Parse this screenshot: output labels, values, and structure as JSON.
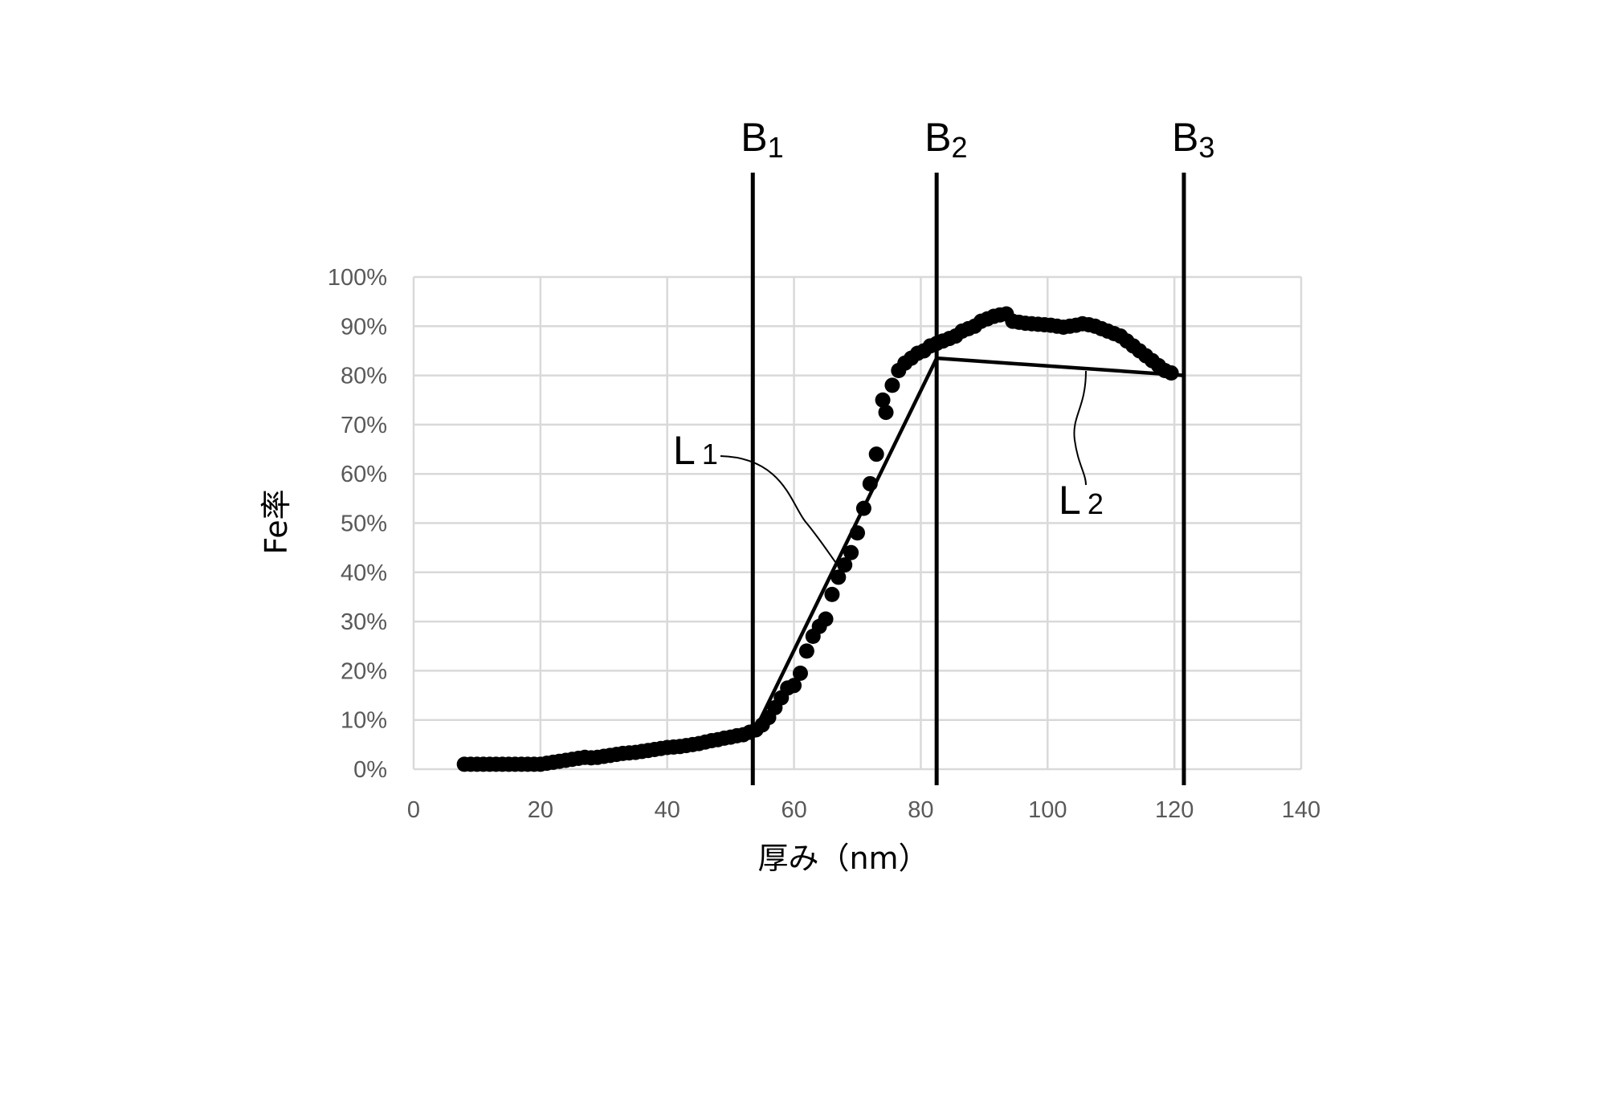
{
  "chart_data": {
    "type": "scatter",
    "title": "",
    "xlabel": "厚み（nm）",
    "ylabel": "Fe率",
    "xlim": [
      0,
      140
    ],
    "ylim": [
      0,
      100
    ],
    "x_ticks": [
      "0",
      "20",
      "40",
      "60",
      "80",
      "100",
      "120",
      "140"
    ],
    "y_ticks": [
      "0%",
      "10%",
      "20%",
      "30%",
      "40%",
      "50%",
      "60%",
      "70%",
      "80%",
      "90%",
      "100%"
    ],
    "grid": true,
    "series": [
      {
        "x": [
          8,
          9,
          10,
          11,
          12,
          13,
          14,
          15,
          16,
          17,
          18,
          19,
          20,
          21,
          22,
          23,
          24,
          25,
          26,
          27,
          28,
          29,
          30,
          31,
          32,
          33,
          34,
          35,
          36,
          37,
          38,
          39,
          40,
          41,
          42,
          43,
          44,
          45,
          46,
          47,
          48,
          49,
          50,
          51,
          52,
          53,
          54,
          55,
          56,
          57,
          58,
          59,
          60,
          61,
          62,
          63,
          64,
          65,
          66,
          67,
          68,
          69,
          70,
          71,
          72,
          73,
          74,
          74.5,
          75.5,
          76.5,
          77.5,
          78.5,
          79.5,
          80.5,
          81.5,
          82.5,
          83.5,
          84.5,
          85.5,
          86.5,
          87.5,
          88.5,
          89.5,
          90.5,
          91.5,
          92.5,
          93.5,
          94.5,
          95.5,
          96.5,
          97.5,
          98.5,
          99.5,
          100.5,
          101.5,
          102.5,
          103.5,
          104.5,
          105.5,
          106.5,
          107.5,
          108.5,
          109.5,
          110.5,
          111.5,
          112.5,
          113.5,
          114.5,
          115.5,
          116.5,
          117.5,
          118.5,
          119.5
        ],
        "y": [
          1.0,
          1.0,
          1.0,
          1.0,
          1.0,
          1.0,
          1.0,
          1.0,
          1.0,
          1.0,
          1.0,
          1.0,
          1.0,
          1.2,
          1.4,
          1.6,
          1.8,
          2.0,
          2.2,
          2.4,
          2.3,
          2.4,
          2.6,
          2.8,
          3.0,
          3.2,
          3.3,
          3.4,
          3.6,
          3.8,
          4.0,
          4.2,
          4.4,
          4.5,
          4.6,
          4.8,
          5.0,
          5.2,
          5.5,
          5.8,
          6.0,
          6.3,
          6.5,
          6.8,
          7.0,
          7.5,
          8.0,
          9.0,
          10.5,
          12.5,
          14.5,
          16.5,
          17.0,
          19.5,
          24.0,
          27.0,
          29.0,
          30.5,
          35.5,
          39.0,
          41.5,
          44.0,
          48.0,
          53.0,
          58.0,
          64.0,
          75.0,
          72.5,
          78.0,
          81.0,
          82.5,
          83.5,
          84.5,
          85.0,
          86.0,
          86.5,
          87.0,
          87.5,
          88.0,
          89.0,
          89.5,
          90.0,
          91.0,
          91.5,
          92.0,
          92.3,
          92.5,
          91.0,
          90.8,
          90.6,
          90.5,
          90.4,
          90.3,
          90.2,
          90.0,
          89.8,
          90.0,
          90.2,
          90.5,
          90.3,
          90.0,
          89.5,
          89.0,
          88.5,
          88.0,
          87.0,
          86.0,
          85.0,
          84.0,
          83.0,
          82.0,
          81.0,
          80.5
        ]
      }
    ],
    "boundaries": [
      {
        "label": "B",
        "subscript": "1",
        "x": 53.5
      },
      {
        "label": "B",
        "subscript": "2",
        "x": 82.5
      },
      {
        "label": "B",
        "subscript": "3",
        "x": 121.5
      }
    ],
    "fit_lines": [
      {
        "label": "L",
        "subscript": "1",
        "points": [
          [
            53.5,
            7.0
          ],
          [
            82.5,
            83.5
          ]
        ]
      },
      {
        "label": "L",
        "subscript": "2",
        "points": [
          [
            82.5,
            83.5
          ],
          [
            121.5,
            80.0
          ]
        ]
      }
    ]
  }
}
